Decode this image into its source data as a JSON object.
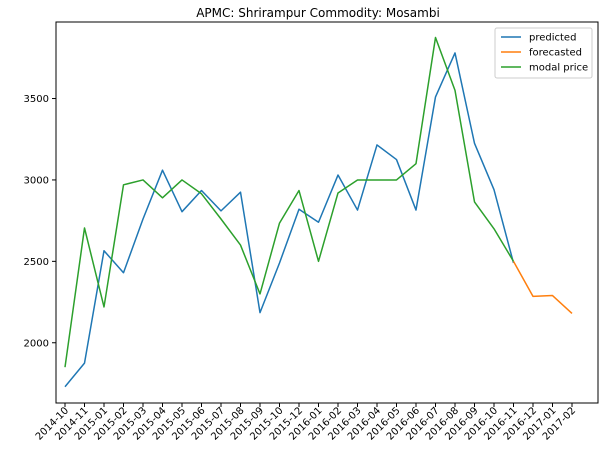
{
  "chart_data": {
    "type": "line",
    "title": "APMC: Shrirampur  Commodity: Mosambi",
    "xlabel": "",
    "ylabel": "",
    "categories": [
      "2014-10",
      "2014-11",
      "2015-01",
      "2015-02",
      "2015-03",
      "2015-04",
      "2015-05",
      "2015-06",
      "2015-07",
      "2015-08",
      "2015-09",
      "2015-10",
      "2015-12",
      "2016-01",
      "2016-02",
      "2016-03",
      "2016-04",
      "2016-05",
      "2016-06",
      "2016-07",
      "2016-08",
      "2016-09",
      "2016-10",
      "2016-11",
      "2016-12",
      "2017-01",
      "2017-02"
    ],
    "ylim": [
      1630,
      3970
    ],
    "yticks": [
      2000,
      2500,
      3000,
      3500
    ],
    "grid": false,
    "legend_position": "top-right",
    "series": [
      {
        "name": "predicted",
        "color": "#1f77b4",
        "values": [
          1730,
          1875,
          2565,
          2430,
          2760,
          3060,
          2805,
          2935,
          2810,
          2925,
          2185,
          2490,
          2820,
          2740,
          3030,
          2815,
          3215,
          3125,
          2815,
          3510,
          3780,
          3225,
          2940,
          2490,
          null,
          null,
          null
        ]
      },
      {
        "name": "forecasted",
        "color": "#ff7f0e",
        "values": [
          null,
          null,
          null,
          null,
          null,
          null,
          null,
          null,
          null,
          null,
          null,
          null,
          null,
          null,
          null,
          null,
          null,
          null,
          null,
          null,
          null,
          null,
          null,
          2500,
          2285,
          2290,
          2180
        ]
      },
      {
        "name": "modal price",
        "color": "#2ca02c",
        "values": [
          1850,
          2705,
          2220,
          2970,
          3000,
          2890,
          3000,
          2915,
          2760,
          2600,
          2300,
          2735,
          2935,
          2500,
          2920,
          3000,
          3000,
          3000,
          3100,
          3875,
          3550,
          2865,
          2700,
          2500,
          null,
          null,
          null
        ]
      }
    ]
  }
}
